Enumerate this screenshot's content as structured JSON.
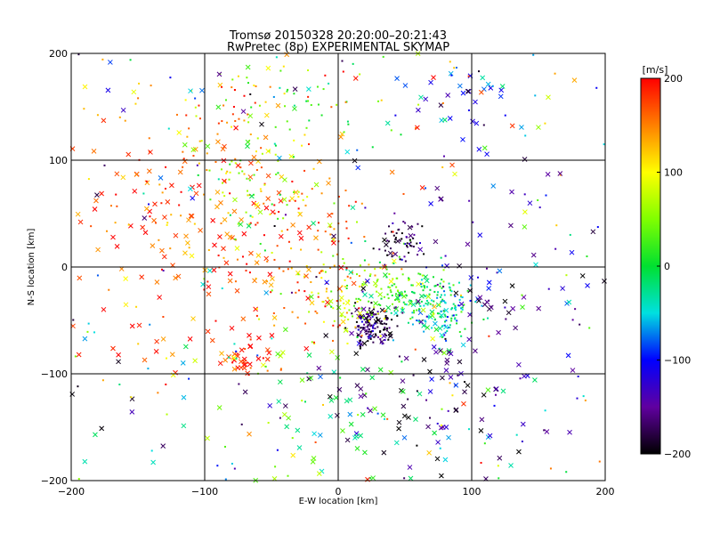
{
  "chart_data": {
    "type": "scatter",
    "title": "Tromsø 20150328 20:20:00–20:21:43",
    "subtitle": "RwPretec (8p) EXPERIMENTAL SKYMAP",
    "xlabel": "E-W location [km]",
    "ylabel": "N-S location [km]",
    "xlim": [
      -200,
      200
    ],
    "ylim": [
      -200,
      200
    ],
    "x_ticks": [
      "−200",
      "−100",
      "0",
      "100",
      "200"
    ],
    "y_ticks": [
      "−200",
      "−100",
      "0",
      "100",
      "200"
    ],
    "grid_lines": [
      -100,
      0,
      100
    ],
    "grid": true,
    "colorbar": {
      "label": "[m/s]",
      "range": [
        -200,
        200
      ],
      "ticks": [
        "200",
        "100",
        "0",
        "−100",
        "−200"
      ],
      "colormap": "rainbow: black (−200) → purple → blue → cyan → green (0) → yellow → orange → red (200)"
    },
    "series_description": "Each marker is one radar echo plotted at its E-W / N-S location; colour encodes line-of-sight velocity in m/s. Dots and crosses mark two echo classes.",
    "clusters": [
      {
        "x": 25,
        "y": -55,
        "spread": 8,
        "velocity": -180,
        "points": 140,
        "marker": "dot"
      },
      {
        "x": 75,
        "y": -38,
        "spread": 14,
        "velocity": -30,
        "points": 150,
        "marker": "dot"
      },
      {
        "x": 45,
        "y": -20,
        "spread": 15,
        "velocity": 20,
        "points": 100,
        "marker": "dot"
      },
      {
        "x": 50,
        "y": 22,
        "spread": 10,
        "velocity": -190,
        "points": 60,
        "marker": "dot"
      },
      {
        "x": 10,
        "y": -30,
        "spread": 20,
        "velocity": 80,
        "points": 80,
        "marker": "dot"
      },
      {
        "x": -70,
        "y": -85,
        "spread": 10,
        "velocity": 190,
        "points": 40,
        "marker": "cross"
      },
      {
        "x": -120,
        "y": 30,
        "spread": 55,
        "velocity": 170,
        "points": 170,
        "marker": "cross"
      },
      {
        "x": -80,
        "y": 130,
        "spread": 45,
        "velocity": 150,
        "points": 90,
        "marker": "dot"
      },
      {
        "x": -20,
        "y": 10,
        "spread": 35,
        "velocity": 160,
        "points": 120,
        "marker": "dot"
      },
      {
        "x": 80,
        "y": -120,
        "spread": 45,
        "velocity": -160,
        "points": 90,
        "marker": "cross"
      },
      {
        "x": 90,
        "y": 170,
        "spread": 25,
        "velocity": -100,
        "points": 40,
        "marker": "cross"
      },
      {
        "x": -60,
        "y": 70,
        "spread": 30,
        "velocity": 60,
        "points": 60,
        "marker": "dot"
      },
      {
        "x": 0,
        "y": -150,
        "spread": 50,
        "velocity": 0,
        "points": 70,
        "marker": "cross"
      },
      {
        "x": 120,
        "y": -10,
        "spread": 40,
        "velocity": -150,
        "points": 60,
        "marker": "cross"
      },
      {
        "x": -30,
        "y": 150,
        "spread": 30,
        "velocity": 30,
        "points": 50,
        "marker": "dot"
      },
      {
        "x": 0,
        "y": 0,
        "spread": 140,
        "velocity": 60,
        "points": 300,
        "marker": "mixed"
      }
    ]
  }
}
